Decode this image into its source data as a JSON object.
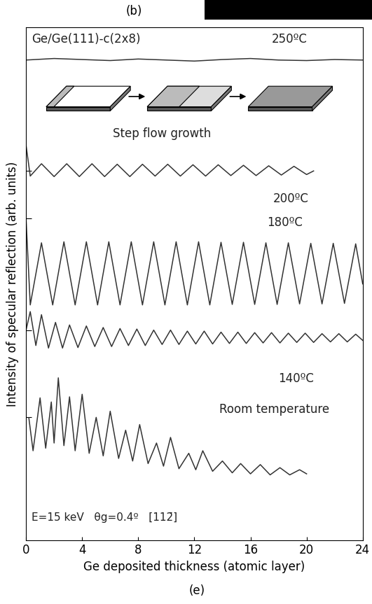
{
  "chart_data": {
    "type": "line",
    "x_label": "Ge deposited thickness (atomic layer)",
    "y_label": "Intensity of specular reflection (arb. units)",
    "annotations": [
      "Ge/Ge(111)-c(2x8)",
      "Step flow growth",
      "E=15 keV   θg=0.4º   [112̄]"
    ],
    "panel_labels": [
      "(b)",
      "(e)"
    ],
    "xlim": [
      0,
      24
    ],
    "xticks": [
      0,
      4,
      8,
      12,
      16,
      20,
      24
    ],
    "ylim": [
      0,
      100
    ],
    "yticks": [
      72,
      62.7,
      41,
      24
    ],
    "tick_labels": "x",
    "grid": false,
    "series": [
      {
        "name": "250ºC",
        "color": "#333333",
        "x": [
          0,
          2,
          4,
          6,
          8,
          10,
          12,
          14,
          16,
          18,
          20,
          22,
          24
        ],
        "values": [
          93.6,
          93.9,
          93.7,
          93.5,
          93.8,
          93.6,
          93.4,
          93.7,
          93.9,
          93.6,
          93.5,
          93.7,
          93.6
        ]
      },
      {
        "name": "200ºC",
        "color": "#333333",
        "x": [
          0.0,
          0.3,
          1.1,
          2.0,
          2.9,
          3.8,
          4.7,
          5.6,
          6.5,
          7.4,
          8.3,
          9.2,
          10.1,
          11.0,
          11.9,
          12.8,
          13.7,
          14.6,
          15.5,
          16.4,
          17.3,
          18.2,
          19.1,
          20.0,
          20.5
        ],
        "values": [
          77.0,
          71.0,
          73.4,
          70.9,
          73.4,
          70.9,
          73.4,
          70.9,
          73.3,
          70.9,
          73.3,
          71.0,
          73.3,
          71.0,
          73.2,
          71.0,
          73.2,
          71.1,
          73.1,
          71.1,
          73.0,
          71.2,
          72.9,
          71.3,
          72.0
        ]
      },
      {
        "name": "180ºC",
        "color": "#333333",
        "x": [
          0.0,
          0.3,
          1.1,
          1.9,
          2.7,
          3.5,
          4.3,
          5.1,
          5.9,
          6.7,
          7.5,
          8.3,
          9.1,
          9.9,
          10.7,
          11.5,
          12.3,
          13.1,
          13.9,
          14.7,
          15.5,
          16.3,
          17.1,
          17.9,
          18.7,
          19.5,
          20.3,
          21.1,
          21.9,
          22.7,
          23.5,
          24.0
        ],
        "values": [
          62.7,
          45.9,
          58.0,
          45.9,
          58.2,
          45.9,
          58.2,
          45.9,
          58.2,
          45.9,
          58.2,
          45.9,
          58.2,
          45.9,
          58.2,
          45.9,
          58.2,
          45.9,
          58.1,
          46.0,
          58.1,
          46.0,
          58.0,
          46.0,
          58.0,
          46.1,
          57.9,
          46.1,
          57.9,
          46.2,
          57.8,
          50.0
        ]
      },
      {
        "name": "140ºC",
        "color": "#333333",
        "x": [
          0.0,
          0.3,
          0.7,
          1.1,
          1.6,
          2.1,
          2.6,
          3.1,
          3.7,
          4.3,
          4.9,
          5.5,
          6.1,
          6.7,
          7.3,
          7.9,
          8.5,
          9.1,
          9.7,
          10.3,
          10.9,
          11.5,
          12.1,
          12.7,
          13.3,
          13.9,
          14.5,
          15.1,
          15.7,
          16.3,
          16.9,
          17.5,
          18.1,
          18.7,
          19.3,
          19.9,
          20.5,
          21.1,
          21.7,
          22.3,
          22.9,
          23.5,
          24.0
        ],
        "values": [
          41.0,
          44.6,
          38.0,
          44.0,
          37.5,
          42.5,
          37.5,
          42.0,
          37.6,
          41.8,
          37.8,
          41.5,
          37.8,
          41.3,
          38.0,
          41.2,
          38.0,
          41.0,
          38.2,
          41.0,
          38.2,
          40.8,
          38.3,
          40.8,
          38.3,
          40.6,
          38.4,
          40.6,
          38.4,
          40.5,
          38.5,
          40.5,
          38.5,
          40.4,
          38.6,
          40.4,
          38.6,
          40.3,
          38.7,
          40.3,
          38.7,
          40.2,
          39.0
        ]
      },
      {
        "name": "Room temperature",
        "color": "#333333",
        "x": [
          0.2,
          0.5,
          1.0,
          1.4,
          1.8,
          2.0,
          2.3,
          2.7,
          3.1,
          3.5,
          4.0,
          4.5,
          5.0,
          5.5,
          6.0,
          6.6,
          7.1,
          7.6,
          8.1,
          8.7,
          9.3,
          9.8,
          10.3,
          10.9,
          11.6,
          12.1,
          12.6,
          13.3,
          14.0,
          14.7,
          15.3,
          16.0,
          16.7,
          17.4,
          18.1,
          18.8,
          19.5,
          20.0
        ],
        "values": [
          23.9,
          17.5,
          27.8,
          18.0,
          27.0,
          19.0,
          31.7,
          18.5,
          28.0,
          17.5,
          28.5,
          17.0,
          24.0,
          16.5,
          25.2,
          16.0,
          21.5,
          15.5,
          22.6,
          15.0,
          19.0,
          14.5,
          20.1,
          14.0,
          17.0,
          13.8,
          17.5,
          13.5,
          15.5,
          13.2,
          15.0,
          13.0,
          14.8,
          12.8,
          14.2,
          12.8,
          13.8,
          13.0
        ]
      }
    ]
  }
}
